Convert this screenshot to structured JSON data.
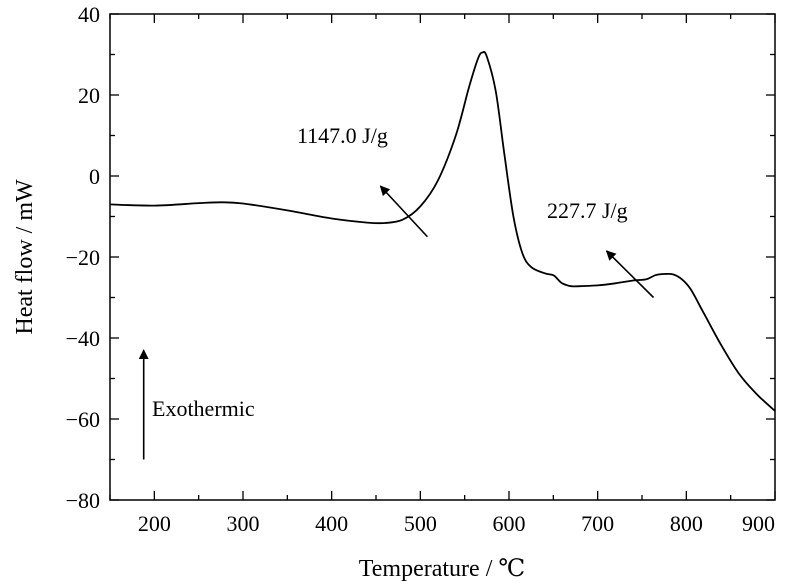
{
  "chart_data": {
    "type": "line",
    "xlabel": "Temperature / ℃",
    "ylabel": "Heat flow / mW",
    "xlim": [
      150,
      900
    ],
    "ylim": [
      -80,
      40
    ],
    "xticks": [
      200,
      300,
      400,
      500,
      600,
      700,
      800,
      900
    ],
    "yticks": [
      -80,
      -60,
      -40,
      -20,
      0,
      20,
      40
    ],
    "grid": false,
    "series": [
      {
        "x": [
          150,
          200,
          250,
          275,
          300,
          350,
          400,
          440,
          460,
          480,
          500,
          520,
          540,
          555,
          565,
          570,
          575,
          585,
          595,
          605,
          615,
          625,
          640,
          650,
          655,
          660,
          670,
          680,
          700,
          720,
          740,
          755,
          765,
          775,
          785,
          795,
          805,
          820,
          840,
          860,
          880,
          900
        ],
        "y": [
          -7,
          -7.3,
          -6.7,
          -6.5,
          -6.8,
          -8.5,
          -10.5,
          -11.5,
          -11.6,
          -10.8,
          -7.5,
          -1,
          10,
          22,
          29,
          30.5,
          29.5,
          21,
          5,
          -10,
          -19,
          -22.5,
          -24,
          -24.5,
          -25.5,
          -26.5,
          -27.2,
          -27.2,
          -27,
          -26.5,
          -25.8,
          -25.5,
          -24.5,
          -24.2,
          -24.3,
          -25.5,
          -28,
          -34,
          -42,
          -49,
          -54,
          -58
        ]
      }
    ],
    "annotations": [
      {
        "text": "1147.0 J/g",
        "arrow_from": [
          508,
          -15
        ],
        "arrow_to": [
          455,
          -2.5
        ]
      },
      {
        "text": "227.7 J/g",
        "arrow_from": [
          763,
          -30
        ],
        "arrow_to": [
          710,
          -18.5
        ]
      },
      {
        "text": "Exothermic",
        "arrow_from": [
          188,
          -70
        ],
        "arrow_to": [
          188,
          -43
        ]
      }
    ]
  }
}
